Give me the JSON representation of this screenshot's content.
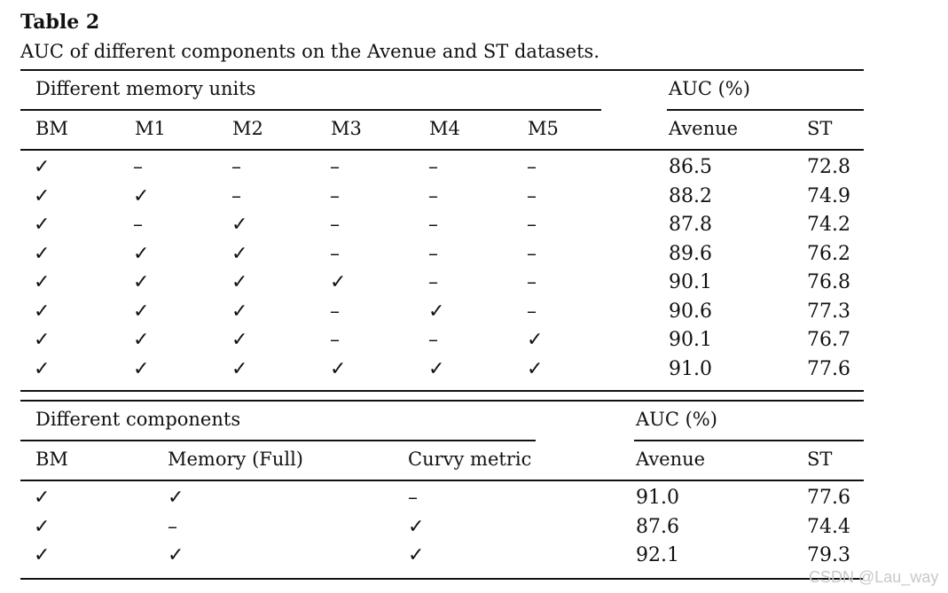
{
  "table": {
    "title": "Table 2",
    "caption": "AUC of different components on the Avenue and ST datasets.",
    "section1": {
      "group_header": "Different memory units",
      "auc_header": "AUC (%)",
      "columns": [
        "BM",
        "M1",
        "M2",
        "M3",
        "M4",
        "M5",
        "Avenue",
        "ST"
      ],
      "rows": [
        [
          "✓",
          "–",
          "–",
          "–",
          "–",
          "–",
          "86.5",
          "72.8"
        ],
        [
          "✓",
          "✓",
          "–",
          "–",
          "–",
          "–",
          "88.2",
          "74.9"
        ],
        [
          "✓",
          "–",
          "✓",
          "–",
          "–",
          "–",
          "87.8",
          "74.2"
        ],
        [
          "✓",
          "✓",
          "✓",
          "–",
          "–",
          "–",
          "89.6",
          "76.2"
        ],
        [
          "✓",
          "✓",
          "✓",
          "✓",
          "–",
          "–",
          "90.1",
          "76.8"
        ],
        [
          "✓",
          "✓",
          "✓",
          "–",
          "✓",
          "–",
          "90.6",
          "77.3"
        ],
        [
          "✓",
          "✓",
          "✓",
          "–",
          "–",
          "✓",
          "90.1",
          "76.7"
        ],
        [
          "✓",
          "✓",
          "✓",
          "✓",
          "✓",
          "✓",
          "91.0",
          "77.6"
        ]
      ]
    },
    "section2": {
      "group_header": "Different components",
      "auc_header": "AUC (%)",
      "columns": [
        "BM",
        "Memory (Full)",
        "Curvy metric",
        "Avenue",
        "ST"
      ],
      "rows": [
        [
          "✓",
          "✓",
          "–",
          "91.0",
          "77.6"
        ],
        [
          "✓",
          "–",
          "✓",
          "87.6",
          "74.4"
        ],
        [
          "✓",
          "✓",
          "✓",
          "92.1",
          "79.3"
        ]
      ]
    }
  },
  "watermark": "CSDN @Lau_way"
}
